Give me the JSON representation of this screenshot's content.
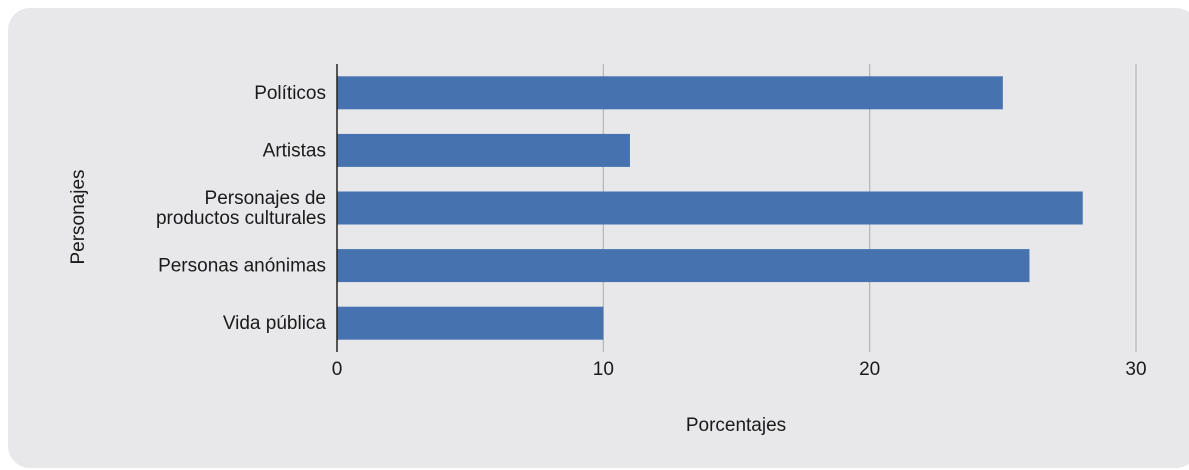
{
  "chart_data": {
    "type": "bar",
    "orientation": "horizontal",
    "title": "",
    "xlabel": "Porcentajes",
    "ylabel": "Personajes",
    "categories": [
      [
        "Políticos"
      ],
      [
        "Artistas"
      ],
      [
        "Personajes de",
        "productos culturales"
      ],
      [
        "Personas anónimas"
      ],
      [
        "Vida pública"
      ]
    ],
    "values": [
      25,
      11,
      28,
      26,
      10
    ],
    "xlim": [
      0,
      30
    ],
    "xticks": [
      0,
      10,
      20,
      30
    ],
    "grid": true,
    "colors": {
      "bar": "#4672b0",
      "grid": "#b4b4b4",
      "axis": "#222222",
      "background": "#e8e8ea"
    }
  }
}
